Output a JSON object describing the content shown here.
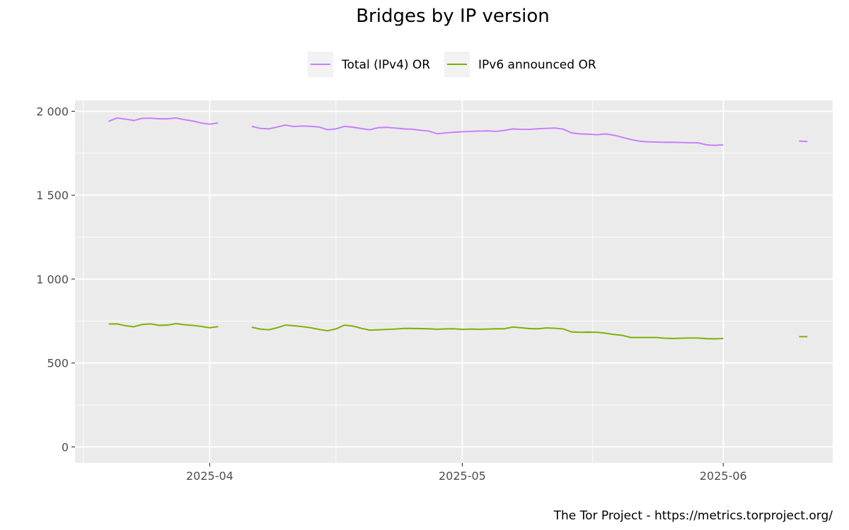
{
  "chart_data": {
    "type": "line",
    "title": "Bridges by IP version",
    "caption": "The Tor Project - https://metrics.torproject.org/",
    "legend": {
      "placement": "top"
    },
    "grid": true,
    "x_type": "date",
    "xlim": [
      "2025-03-16",
      "2025-06-14"
    ],
    "x_ticks": [
      "2025-04-01",
      "2025-05-01",
      "2025-06-01"
    ],
    "x_tick_labels": [
      "2025-04",
      "2025-05",
      "2025-06"
    ],
    "ylim": [
      -95,
      2065
    ],
    "y_ticks": [
      0,
      500,
      1000,
      1500,
      2000
    ],
    "y_tick_labels": [
      "0",
      "500",
      "1 000",
      "1 500",
      "2 000"
    ],
    "series": [
      {
        "name": "Total (IPv4) OR",
        "color": "#c77cff",
        "segments": [
          [
            [
              "2025-03-20",
              1940
            ],
            [
              "2025-03-21",
              1960
            ],
            [
              "2025-03-22",
              1953
            ],
            [
              "2025-03-23",
              1945
            ],
            [
              "2025-03-24",
              1958
            ],
            [
              "2025-03-25",
              1959
            ],
            [
              "2025-03-26",
              1955
            ],
            [
              "2025-03-27",
              1955
            ],
            [
              "2025-03-28",
              1960
            ],
            [
              "2025-03-29",
              1950
            ],
            [
              "2025-03-30",
              1942
            ],
            [
              "2025-03-31",
              1930
            ],
            [
              "2025-04-01",
              1923
            ],
            [
              "2025-04-02",
              1930
            ]
          ],
          [
            [
              "2025-04-06",
              1910
            ],
            [
              "2025-04-07",
              1898
            ],
            [
              "2025-04-08",
              1895
            ],
            [
              "2025-04-09",
              1906
            ],
            [
              "2025-04-10",
              1918
            ],
            [
              "2025-04-11",
              1909
            ],
            [
              "2025-04-12",
              1912
            ],
            [
              "2025-04-13",
              1910
            ],
            [
              "2025-04-14",
              1906
            ],
            [
              "2025-04-15",
              1890
            ],
            [
              "2025-04-16",
              1895
            ],
            [
              "2025-04-17",
              1910
            ],
            [
              "2025-04-18",
              1905
            ],
            [
              "2025-04-19",
              1897
            ],
            [
              "2025-04-20",
              1890
            ],
            [
              "2025-04-21",
              1902
            ],
            [
              "2025-04-22",
              1904
            ],
            [
              "2025-04-23",
              1900
            ],
            [
              "2025-04-24",
              1895
            ],
            [
              "2025-04-25",
              1893
            ],
            [
              "2025-04-26",
              1887
            ],
            [
              "2025-04-27",
              1882
            ],
            [
              "2025-04-28",
              1866
            ],
            [
              "2025-04-29",
              1871
            ],
            [
              "2025-04-30",
              1875
            ],
            [
              "2025-05-01",
              1878
            ],
            [
              "2025-05-02",
              1880
            ],
            [
              "2025-05-03",
              1882
            ],
            [
              "2025-05-04",
              1883
            ],
            [
              "2025-05-05",
              1880
            ],
            [
              "2025-05-06",
              1886
            ],
            [
              "2025-05-07",
              1895
            ],
            [
              "2025-05-08",
              1892
            ],
            [
              "2025-05-09",
              1892
            ],
            [
              "2025-05-10",
              1896
            ],
            [
              "2025-05-11",
              1898
            ],
            [
              "2025-05-12",
              1900
            ],
            [
              "2025-05-13",
              1893
            ],
            [
              "2025-05-14",
              1871
            ],
            [
              "2025-05-15",
              1865
            ],
            [
              "2025-05-16",
              1863
            ],
            [
              "2025-05-17",
              1860
            ],
            [
              "2025-05-18",
              1865
            ],
            [
              "2025-05-19",
              1858
            ],
            [
              "2025-05-20",
              1845
            ],
            [
              "2025-05-21",
              1832
            ],
            [
              "2025-05-22",
              1822
            ],
            [
              "2025-05-23",
              1818
            ],
            [
              "2025-05-24",
              1817
            ],
            [
              "2025-05-25",
              1815
            ],
            [
              "2025-05-26",
              1815
            ],
            [
              "2025-05-27",
              1814
            ],
            [
              "2025-05-28",
              1812
            ],
            [
              "2025-05-29",
              1812
            ],
            [
              "2025-05-30",
              1800
            ],
            [
              "2025-05-31",
              1797
            ],
            [
              "2025-06-01",
              1800
            ]
          ],
          [
            [
              "2025-06-10",
              1822
            ],
            [
              "2025-06-11",
              1820
            ]
          ]
        ]
      },
      {
        "name": "IPv6 announced OR",
        "color": "#7cae00",
        "segments": [
          [
            [
              "2025-03-20",
              732
            ],
            [
              "2025-03-21",
              733
            ],
            [
              "2025-03-22",
              722
            ],
            [
              "2025-03-23",
              716
            ],
            [
              "2025-03-24",
              730
            ],
            [
              "2025-03-25",
              733
            ],
            [
              "2025-03-26",
              724
            ],
            [
              "2025-03-27",
              726
            ],
            [
              "2025-03-28",
              735
            ],
            [
              "2025-03-29",
              728
            ],
            [
              "2025-03-30",
              724
            ],
            [
              "2025-03-31",
              718
            ],
            [
              "2025-04-01",
              710
            ],
            [
              "2025-04-02",
              717
            ]
          ],
          [
            [
              "2025-04-06",
              713
            ],
            [
              "2025-04-07",
              702
            ],
            [
              "2025-04-08",
              698
            ],
            [
              "2025-04-09",
              710
            ],
            [
              "2025-04-10",
              726
            ],
            [
              "2025-04-11",
              722
            ],
            [
              "2025-04-12",
              717
            ],
            [
              "2025-04-13",
              710
            ],
            [
              "2025-04-14",
              700
            ],
            [
              "2025-04-15",
              692
            ],
            [
              "2025-04-16",
              703
            ],
            [
              "2025-04-17",
              726
            ],
            [
              "2025-04-18",
              720
            ],
            [
              "2025-04-19",
              707
            ],
            [
              "2025-04-20",
              696
            ],
            [
              "2025-04-21",
              698
            ],
            [
              "2025-04-22",
              700
            ],
            [
              "2025-04-23",
              702
            ],
            [
              "2025-04-24",
              706
            ],
            [
              "2025-04-25",
              706
            ],
            [
              "2025-04-26",
              705
            ],
            [
              "2025-04-27",
              704
            ],
            [
              "2025-04-28",
              701
            ],
            [
              "2025-04-29",
              703
            ],
            [
              "2025-04-30",
              704
            ],
            [
              "2025-05-01",
              700
            ],
            [
              "2025-05-02",
              702
            ],
            [
              "2025-05-03",
              701
            ],
            [
              "2025-05-04",
              702
            ],
            [
              "2025-05-05",
              704
            ],
            [
              "2025-05-06",
              704
            ],
            [
              "2025-05-07",
              714
            ],
            [
              "2025-05-08",
              710
            ],
            [
              "2025-05-09",
              705
            ],
            [
              "2025-05-10",
              704
            ],
            [
              "2025-05-11",
              709
            ],
            [
              "2025-05-12",
              707
            ],
            [
              "2025-05-13",
              703
            ],
            [
              "2025-05-14",
              685
            ],
            [
              "2025-05-15",
              683
            ],
            [
              "2025-05-16",
              684
            ],
            [
              "2025-05-17",
              683
            ],
            [
              "2025-05-18",
              678
            ],
            [
              "2025-05-19",
              670
            ],
            [
              "2025-05-20",
              665
            ],
            [
              "2025-05-21",
              652
            ],
            [
              "2025-05-22",
              652
            ],
            [
              "2025-05-23",
              652
            ],
            [
              "2025-05-24",
              652
            ],
            [
              "2025-05-25",
              648
            ],
            [
              "2025-05-26",
              646
            ],
            [
              "2025-05-27",
              648
            ],
            [
              "2025-05-28",
              649
            ],
            [
              "2025-05-29",
              649
            ],
            [
              "2025-05-30",
              645
            ],
            [
              "2025-05-31",
              644
            ],
            [
              "2025-06-01",
              646
            ]
          ],
          [
            [
              "2025-06-10",
              657
            ],
            [
              "2025-06-11",
              657
            ]
          ]
        ]
      }
    ]
  }
}
